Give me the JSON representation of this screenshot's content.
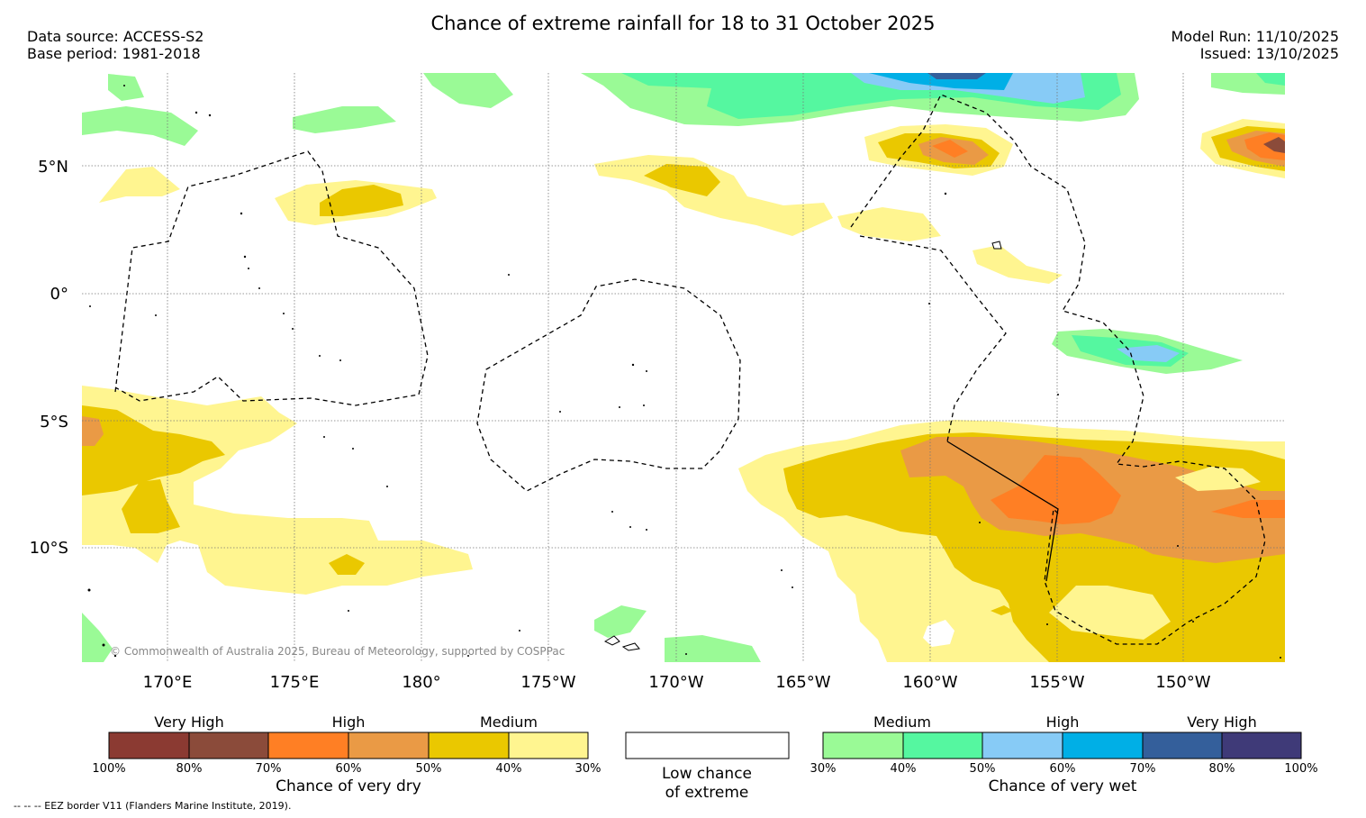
{
  "title": "Chance of extreme rainfall for 18 to 31 October 2025",
  "meta_left": {
    "data_source": "Data source: ACCESS-S2",
    "base_period": "Base period: 1981-2018"
  },
  "meta_right": {
    "model_run": "Model Run: 11/10/2025",
    "issued": "Issued: 13/10/2025"
  },
  "lat_ticks": [
    "5°N",
    "0°",
    "5°S",
    "10°S"
  ],
  "lon_ticks": [
    "170°E",
    "175°E",
    "180°",
    "175°W",
    "170°W",
    "165°W",
    "160°W",
    "155°W",
    "150°W"
  ],
  "copyright": "© Commonwealth of Australia 2025, Bureau of Meteorology, supported by COSPPac",
  "colors": {
    "dry_100_90": "#8b3a32",
    "dry_80_70": "#8b4b3a",
    "dry_70_60": "#ff7f24",
    "dry_60_50": "#ea9a45",
    "dry_50_40": "#eac800",
    "dry_40_30": "#fff590",
    "wet_30_40": "#9afa96",
    "wet_40_50": "#55f7a0",
    "wet_50_60": "#87cbf6",
    "wet_60_70": "#00afe6",
    "wet_70_80": "#345f9b",
    "wet_80_100": "#3f3a78"
  },
  "dry_bar": {
    "categories": [
      "Very High",
      "High",
      "Medium"
    ],
    "labels": [
      "100%",
      "80%",
      "70%",
      "60%",
      "50%",
      "40%",
      "30%"
    ],
    "title": "Chance of very dry"
  },
  "low_box": {
    "line1": "Low chance",
    "line2": "of extreme"
  },
  "wet_bar": {
    "categories": [
      "Medium",
      "High",
      "Very High"
    ],
    "labels": [
      "30%",
      "40%",
      "50%",
      "60%",
      "70%",
      "80%",
      "100%"
    ],
    "title": "Chance of very wet"
  },
  "footnote": "--  --  -- EEZ border V11 (Flanders Marine Institute, 2019)."
}
